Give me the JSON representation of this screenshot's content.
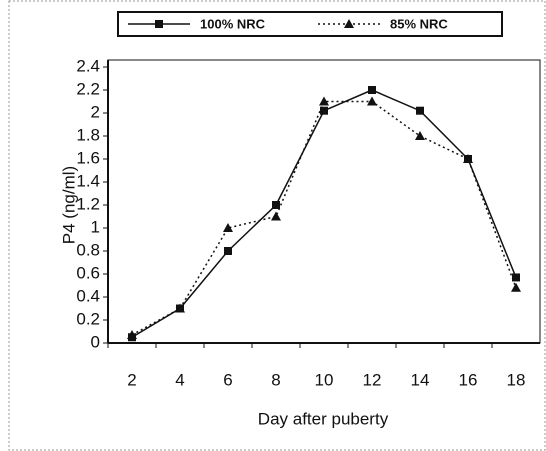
{
  "chart_data": {
    "type": "line",
    "ylabel": "P4 (ng/ml)",
    "xlabel": "Day after puberty",
    "categories": [
      "2",
      "4",
      "6",
      "8",
      "10",
      "12",
      "14",
      "16",
      "18"
    ],
    "series": [
      {
        "name": "100% NRC",
        "color": "#111111",
        "marker": "square",
        "dash": "solid",
        "values": [
          0.05,
          0.3,
          0.8,
          1.2,
          2.02,
          2.2,
          2.02,
          1.6,
          0.57
        ]
      },
      {
        "name": "85% NRC",
        "color": "#111111",
        "marker": "triangle",
        "dash": "dotted",
        "values": [
          0.07,
          0.3,
          1.0,
          1.1,
          2.1,
          2.1,
          1.8,
          1.6,
          0.48
        ]
      }
    ],
    "ylim": [
      0,
      2.4
    ],
    "yticks": [
      0,
      0.2,
      0.4,
      0.6,
      0.8,
      1,
      1.2,
      1.4,
      1.6,
      1.8,
      2,
      2.2,
      2.4
    ],
    "legend": "top"
  }
}
